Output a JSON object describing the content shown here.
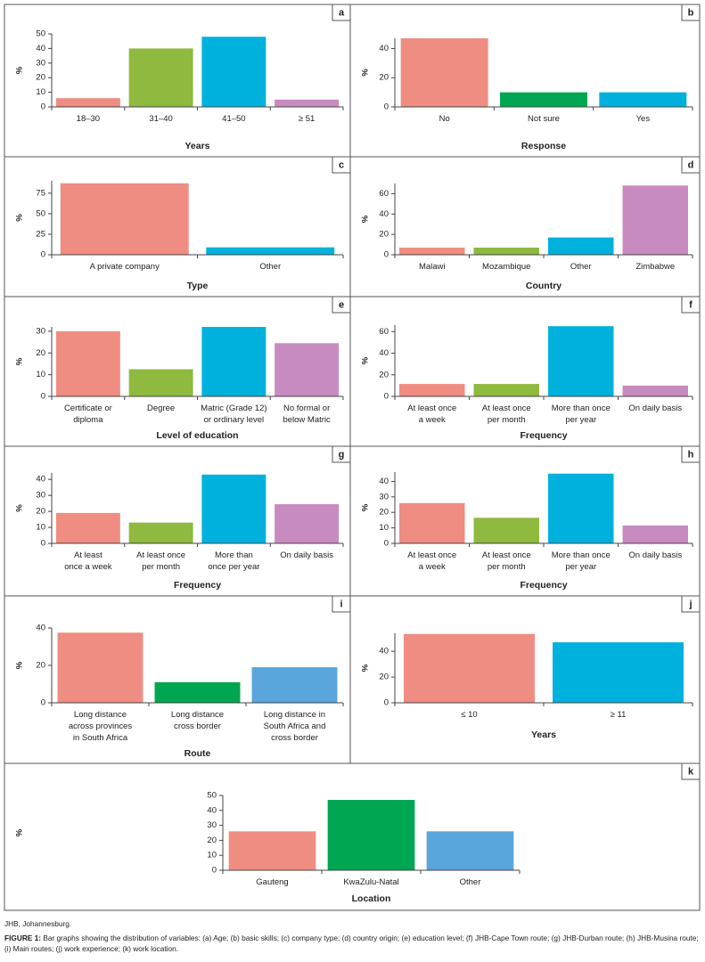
{
  "chart_data": [
    {
      "type": "bar",
      "panel": "a",
      "ylabel": "%",
      "xlabel": "Years",
      "categories": [
        "18–30",
        "31–40",
        "41–50",
        "≥ 51"
      ],
      "values": [
        6,
        40,
        48,
        5
      ],
      "colors": [
        "#f08d82",
        "#8fb93f",
        "#00b1dd",
        "#c78bc0"
      ],
      "ylim": [
        0,
        50
      ],
      "yticks": [
        0,
        10,
        20,
        30,
        40,
        50
      ]
    },
    {
      "type": "bar",
      "panel": "b",
      "ylabel": "%",
      "xlabel": "Response",
      "categories": [
        "No",
        "Not sure",
        "Yes"
      ],
      "values": [
        47,
        10,
        10
      ],
      "colors": [
        "#f08d82",
        "#00a651",
        "#00b1dd"
      ],
      "ylim": [
        0,
        47
      ],
      "yticks": [
        0,
        20,
        40
      ]
    },
    {
      "type": "bar",
      "panel": "c",
      "ylabel": "%",
      "xlabel": "Type",
      "categories": [
        "A private company",
        "Other"
      ],
      "values": [
        87,
        9
      ],
      "colors": [
        "#f08d82",
        "#00b1dd"
      ],
      "ylim": [
        0,
        90
      ],
      "yticks": [
        0,
        25,
        50,
        75
      ]
    },
    {
      "type": "bar",
      "panel": "d",
      "ylabel": "%",
      "xlabel": "Country",
      "categories": [
        "Malawi",
        "Mozambique",
        "Other",
        "Zimbabwe"
      ],
      "values": [
        7,
        7,
        17,
        68
      ],
      "colors": [
        "#f08d82",
        "#8fb93f",
        "#00b1dd",
        "#c78bc0"
      ],
      "ylim": [
        0,
        70
      ],
      "yticks": [
        0,
        20,
        40,
        60
      ]
    },
    {
      "type": "bar",
      "panel": "e",
      "ylabel": "%",
      "xlabel": "Level of education",
      "categories": [
        "Certificate or\ndiploma",
        "Degree",
        "Matric (Grade 12)\nor ordinary level",
        "No formal or\nbelow Matric"
      ],
      "values": [
        30,
        12.5,
        32,
        24.5
      ],
      "colors": [
        "#f08d82",
        "#8fb93f",
        "#00b1dd",
        "#c78bc0"
      ],
      "ylim": [
        0,
        32
      ],
      "yticks": [
        0,
        10,
        20,
        30
      ]
    },
    {
      "type": "bar",
      "panel": "f",
      "ylabel": "%",
      "xlabel": "Frequency",
      "categories": [
        "At least once\na week",
        "At least once\nper month",
        "More than once\nper year",
        "On daily basis"
      ],
      "values": [
        11.5,
        11.5,
        65,
        10
      ],
      "colors": [
        "#f08d82",
        "#8fb93f",
        "#00b1dd",
        "#c78bc0"
      ],
      "ylim": [
        0,
        66
      ],
      "yticks": [
        0,
        20,
        40,
        60
      ]
    },
    {
      "type": "bar",
      "panel": "g",
      "ylabel": "%",
      "xlabel": "Frequency",
      "categories": [
        "At least\nonce a week",
        "At least once\nper month",
        "More than\nonce per year",
        "On daily basis"
      ],
      "values": [
        19,
        13,
        43,
        24.5
      ],
      "colors": [
        "#f08d82",
        "#8fb93f",
        "#00b1dd",
        "#c78bc0"
      ],
      "ylim": [
        0,
        44
      ],
      "yticks": [
        0,
        10,
        20,
        30,
        40
      ]
    },
    {
      "type": "bar",
      "panel": "h",
      "ylabel": "%",
      "xlabel": "Frequency",
      "categories": [
        "At least once\na week",
        "At least once\nper month",
        "More than once\nper year",
        "On daily basis"
      ],
      "values": [
        26,
        16.5,
        45,
        11.5
      ],
      "colors": [
        "#f08d82",
        "#8fb93f",
        "#00b1dd",
        "#c78bc0"
      ],
      "ylim": [
        0,
        46
      ],
      "yticks": [
        0,
        10,
        20,
        30,
        40
      ]
    },
    {
      "type": "bar",
      "panel": "i",
      "ylabel": "%",
      "xlabel": "Route",
      "categories": [
        "Long distance\nacross provinces\nin South Africa",
        "Long distance\ncross border",
        "Long distance in\nSouth Africa and\ncross border"
      ],
      "values": [
        37.5,
        11,
        19
      ],
      "colors": [
        "#f08d82",
        "#00a651",
        "#5aa5dc"
      ],
      "ylim": [
        0,
        40
      ],
      "yticks": [
        0,
        20,
        40
      ]
    },
    {
      "type": "bar",
      "panel": "j",
      "ylabel": "%",
      "xlabel": "Years",
      "categories": [
        "≤ 10",
        "≥ 11"
      ],
      "values": [
        53.5,
        47
      ],
      "colors": [
        "#f08d82",
        "#00b1dd"
      ],
      "ylim": [
        0,
        54
      ],
      "yticks": [
        0,
        20,
        40
      ]
    },
    {
      "type": "bar",
      "panel": "k",
      "ylabel": "%",
      "xlabel": "Location",
      "categories": [
        "Gauteng",
        "KwaZulu-Natal",
        "Other"
      ],
      "values": [
        26,
        47,
        26
      ],
      "colors": [
        "#f08d82",
        "#00a651",
        "#5aa5dc"
      ],
      "ylim": [
        0,
        50
      ],
      "yticks": [
        0,
        10,
        20,
        30,
        40,
        50
      ]
    }
  ],
  "footnote": "JHB, Johannesburg.",
  "caption": {
    "label": "FIGURE 1:",
    "text": "Bar graphs showing the distribution of variables: (a) Age; (b) basic skills; (c) company type; (d) country origin; (e) education level; (f) JHB-Cape Town route; (g) JHB-Durban route; (h) JHB-Musina route; (i) Main routes; (j) work experience; (k) work location."
  }
}
